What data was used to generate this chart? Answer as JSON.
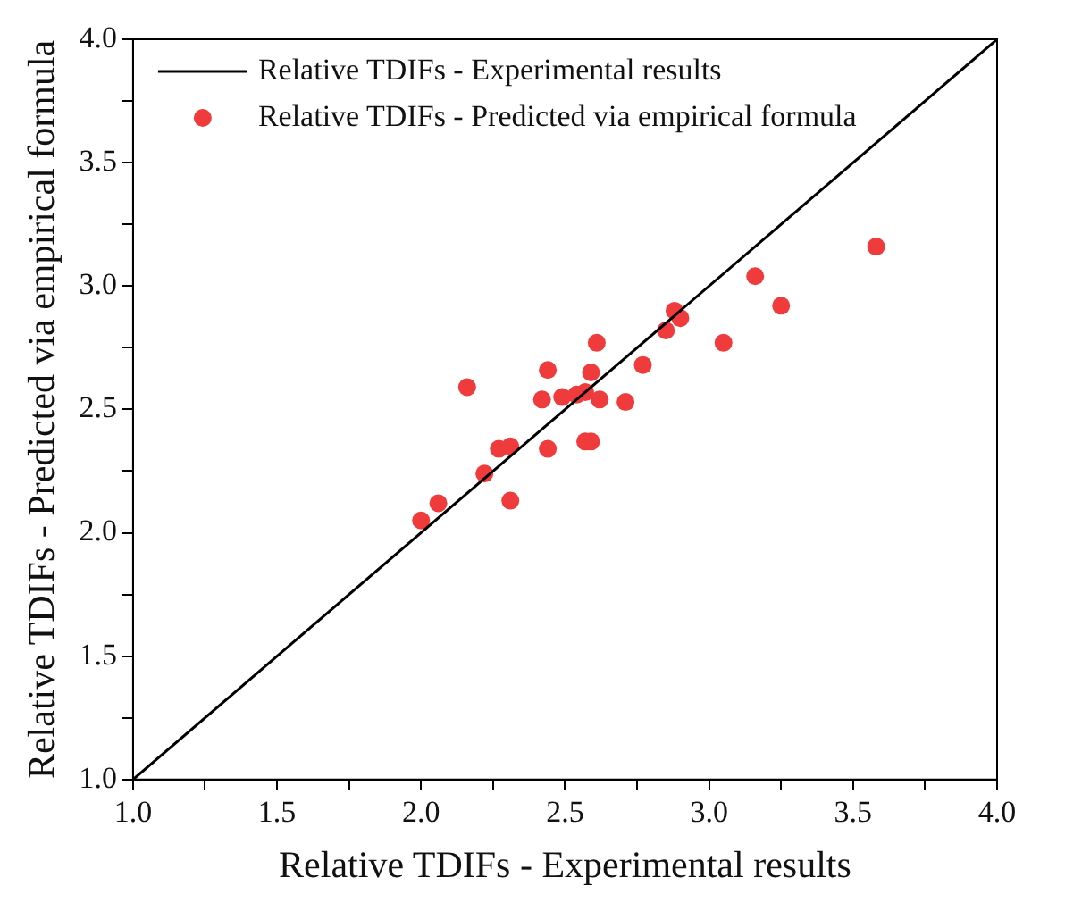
{
  "chart_data": {
    "type": "scatter",
    "xlabel": "Relative TDIFs - Experimental results",
    "ylabel": "Relative TDIFs - Predicted via empirical formula",
    "xlim": [
      1.0,
      4.0
    ],
    "ylim": [
      1.0,
      4.0
    ],
    "xticks": [
      {
        "value": 1.0,
        "label": "1.0"
      },
      {
        "value": 1.25,
        "label": null
      },
      {
        "value": 1.5,
        "label": "1.5"
      },
      {
        "value": 1.75,
        "label": null
      },
      {
        "value": 2.0,
        "label": "2.0"
      },
      {
        "value": 2.25,
        "label": null
      },
      {
        "value": 2.5,
        "label": "2.5"
      },
      {
        "value": 2.75,
        "label": null
      },
      {
        "value": 3.0,
        "label": "3.0"
      },
      {
        "value": 3.25,
        "label": null
      },
      {
        "value": 3.5,
        "label": "3.5"
      },
      {
        "value": 3.75,
        "label": null
      },
      {
        "value": 4.0,
        "label": "4.0"
      }
    ],
    "yticks": [
      {
        "value": 1.0,
        "label": "1.0"
      },
      {
        "value": 1.25,
        "label": null
      },
      {
        "value": 1.5,
        "label": "1.5"
      },
      {
        "value": 1.75,
        "label": null
      },
      {
        "value": 2.0,
        "label": "2.0"
      },
      {
        "value": 2.25,
        "label": null
      },
      {
        "value": 2.5,
        "label": "2.5"
      },
      {
        "value": 2.75,
        "label": null
      },
      {
        "value": 3.0,
        "label": "3.0"
      },
      {
        "value": 3.25,
        "label": null
      },
      {
        "value": 3.5,
        "label": "3.5"
      },
      {
        "value": 3.75,
        "label": null
      },
      {
        "value": 4.0,
        "label": "4.0"
      }
    ],
    "grid": false,
    "legend": "top left",
    "series": [
      {
        "name": "Relative TDIFs - Experimental results",
        "type": "line",
        "color": "#000000",
        "marker": "none",
        "line_style": "solid",
        "x": [
          1.0,
          4.0
        ],
        "values": [
          1.0,
          4.0
        ]
      },
      {
        "name": "Relative TDIFs - Predicted via empirical formula",
        "type": "scatter",
        "color": "#ef3b3b",
        "marker": "circle",
        "x": [
          2.0,
          2.06,
          2.16,
          2.22,
          2.27,
          2.31,
          2.31,
          2.42,
          2.44,
          2.44,
          2.49,
          2.54,
          2.57,
          2.59,
          2.61,
          2.62,
          2.57,
          2.59,
          2.71,
          2.77,
          2.85,
          2.88,
          2.9,
          3.05,
          3.16,
          3.25,
          3.58
        ],
        "values": [
          2.05,
          2.12,
          2.59,
          2.24,
          2.34,
          2.35,
          2.13,
          2.54,
          2.66,
          2.34,
          2.55,
          2.56,
          2.57,
          2.65,
          2.77,
          2.54,
          2.37,
          2.37,
          2.53,
          2.68,
          2.82,
          2.9,
          2.87,
          2.77,
          3.04,
          2.92,
          3.16
        ]
      }
    ]
  }
}
